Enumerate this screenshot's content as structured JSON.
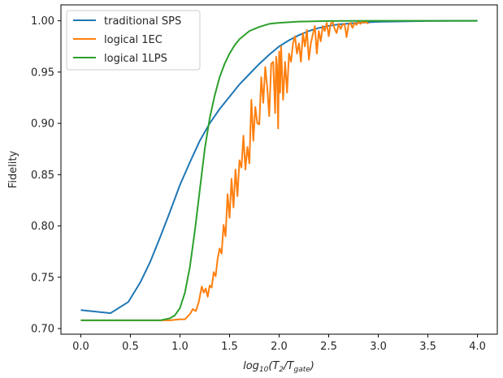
{
  "chart_data": {
    "type": "line",
    "title": "",
    "xlabel": "log10(T2/Tgate)",
    "xlabel_parts": {
      "pre": "log",
      "pre_sub": "10",
      "open": "(",
      "t2": "T",
      "t2_sub": "2",
      "slash": "/",
      "tg": "T",
      "tg_sub": "gate",
      "close": ")"
    },
    "ylabel": "Fidelity",
    "xlim": [
      -0.2,
      4.2
    ],
    "ylim": [
      0.6945,
      1.0155
    ],
    "xticks": [
      "0.0",
      "0.5",
      "1.0",
      "1.5",
      "2.0",
      "2.5",
      "3.0",
      "3.5",
      "4.0"
    ],
    "xtick_values": [
      0,
      0.5,
      1.0,
      1.5,
      2.0,
      2.5,
      3.0,
      3.5,
      4.0
    ],
    "yticks": [
      "0.70",
      "0.75",
      "0.80",
      "0.85",
      "0.90",
      "0.95",
      "1.00"
    ],
    "ytick_values": [
      0.7,
      0.75,
      0.8,
      0.85,
      0.9,
      0.95,
      1.0
    ],
    "grid": false,
    "legend_position": "upper-left",
    "series": [
      {
        "name": "traditional SPS",
        "color": "#1f77b4",
        "points": [
          [
            0,
            0.718
          ],
          [
            0.3,
            0.715
          ],
          [
            0.48,
            0.726
          ],
          [
            0.6,
            0.745
          ],
          [
            0.7,
            0.765
          ],
          [
            0.8,
            0.789
          ],
          [
            0.9,
            0.814
          ],
          [
            1.0,
            0.84
          ],
          [
            1.1,
            0.862
          ],
          [
            1.2,
            0.883
          ],
          [
            1.3,
            0.9
          ],
          [
            1.4,
            0.914
          ],
          [
            1.5,
            0.926
          ],
          [
            1.6,
            0.938
          ],
          [
            1.7,
            0.948
          ],
          [
            1.8,
            0.958
          ],
          [
            1.9,
            0.967
          ],
          [
            2.0,
            0.975
          ],
          [
            2.1,
            0.981
          ],
          [
            2.2,
            0.986
          ],
          [
            2.3,
            0.99
          ],
          [
            2.4,
            0.993
          ],
          [
            2.5,
            0.995
          ],
          [
            2.6,
            0.9965
          ],
          [
            2.8,
            0.998
          ],
          [
            3.0,
            0.999
          ],
          [
            3.5,
            0.9998
          ],
          [
            4.0,
            1.0
          ]
        ]
      },
      {
        "name": "logical 1EC",
        "color": "#ff7f0e",
        "points": [
          [
            0,
            0.708
          ],
          [
            0.5,
            0.708
          ],
          [
            0.9,
            0.708
          ],
          [
            1.0,
            0.709
          ],
          [
            1.05,
            0.709
          ],
          [
            1.1,
            0.714
          ],
          [
            1.13,
            0.719
          ],
          [
            1.16,
            0.717
          ],
          [
            1.19,
            0.726
          ],
          [
            1.22,
            0.741
          ],
          [
            1.24,
            0.735
          ],
          [
            1.26,
            0.739
          ],
          [
            1.28,
            0.731
          ],
          [
            1.3,
            0.742
          ],
          [
            1.32,
            0.74
          ],
          [
            1.34,
            0.755
          ],
          [
            1.36,
            0.751
          ],
          [
            1.38,
            0.768
          ],
          [
            1.4,
            0.778
          ],
          [
            1.42,
            0.773
          ],
          [
            1.44,
            0.801
          ],
          [
            1.46,
            0.79
          ],
          [
            1.48,
            0.831
          ],
          [
            1.5,
            0.808
          ],
          [
            1.52,
            0.846
          ],
          [
            1.54,
            0.818
          ],
          [
            1.56,
            0.855
          ],
          [
            1.58,
            0.829
          ],
          [
            1.6,
            0.864
          ],
          [
            1.62,
            0.857
          ],
          [
            1.64,
            0.888
          ],
          [
            1.66,
            0.855
          ],
          [
            1.68,
            0.877
          ],
          [
            1.7,
            0.861
          ],
          [
            1.72,
            0.923
          ],
          [
            1.74,
            0.883
          ],
          [
            1.76,
            0.916
          ],
          [
            1.78,
            0.9
          ],
          [
            1.8,
            0.899
          ],
          [
            1.82,
            0.945
          ],
          [
            1.84,
            0.92
          ],
          [
            1.86,
            0.955
          ],
          [
            1.88,
            0.935
          ],
          [
            1.9,
            0.907
          ],
          [
            1.92,
            0.958
          ],
          [
            1.94,
            0.96
          ],
          [
            1.96,
            0.91
          ],
          [
            1.97,
            0.965
          ],
          [
            1.98,
            0.955
          ],
          [
            1.99,
            0.895
          ],
          [
            2.0,
            0.97
          ],
          [
            2.01,
            0.93
          ],
          [
            2.02,
            0.975
          ],
          [
            2.04,
            0.923
          ],
          [
            2.06,
            0.96
          ],
          [
            2.08,
            0.93
          ],
          [
            2.1,
            0.968
          ],
          [
            2.12,
            0.96
          ],
          [
            2.14,
            0.978
          ],
          [
            2.16,
            0.985
          ],
          [
            2.18,
            0.968
          ],
          [
            2.2,
            0.978
          ],
          [
            2.22,
            0.96
          ],
          [
            2.24,
            0.988
          ],
          [
            2.26,
            0.975
          ],
          [
            2.28,
            0.991
          ],
          [
            2.3,
            0.962
          ],
          [
            2.32,
            0.978
          ],
          [
            2.34,
            0.987
          ],
          [
            2.36,
            0.995
          ],
          [
            2.38,
            0.968
          ],
          [
            2.4,
            0.99
          ],
          [
            2.42,
            0.98
          ],
          [
            2.44,
            0.995
          ],
          [
            2.46,
            0.99
          ],
          [
            2.48,
            0.998
          ],
          [
            2.5,
            0.985
          ],
          [
            2.52,
            0.997
          ],
          [
            2.54,
            0.999
          ],
          [
            2.56,
            0.992
          ],
          [
            2.58,
            0.988
          ],
          [
            2.6,
            0.997
          ],
          [
            2.62,
            0.992
          ],
          [
            2.64,
            0.996
          ],
          [
            2.66,
            0.997
          ],
          [
            2.68,
            0.984
          ],
          [
            2.7,
            0.996
          ],
          [
            2.72,
            0.998
          ],
          [
            2.74,
            0.993
          ],
          [
            2.76,
            0.998
          ],
          [
            2.78,
            0.996
          ],
          [
            2.8,
            0.999
          ],
          [
            2.82,
            0.997
          ],
          [
            2.84,
            0.999
          ],
          [
            2.86,
            0.998
          ],
          [
            2.88,
            0.999
          ],
          [
            2.9,
            0.997
          ]
        ]
      },
      {
        "name": "logical 1LPS",
        "color": "#2ca02c",
        "points": [
          [
            0,
            0.708
          ],
          [
            0.5,
            0.708
          ],
          [
            0.8,
            0.708
          ],
          [
            0.9,
            0.71
          ],
          [
            0.95,
            0.713
          ],
          [
            1.0,
            0.72
          ],
          [
            1.05,
            0.735
          ],
          [
            1.1,
            0.76
          ],
          [
            1.15,
            0.795
          ],
          [
            1.2,
            0.835
          ],
          [
            1.25,
            0.875
          ],
          [
            1.3,
            0.905
          ],
          [
            1.35,
            0.927
          ],
          [
            1.4,
            0.945
          ],
          [
            1.45,
            0.958
          ],
          [
            1.5,
            0.968
          ],
          [
            1.55,
            0.976
          ],
          [
            1.6,
            0.982
          ],
          [
            1.7,
            0.99
          ],
          [
            1.8,
            0.994
          ],
          [
            1.9,
            0.997
          ],
          [
            2.0,
            0.998
          ],
          [
            2.2,
            0.9992
          ],
          [
            2.5,
            0.9998
          ],
          [
            3.0,
            1.0
          ],
          [
            4.0,
            1.0
          ]
        ]
      }
    ]
  }
}
